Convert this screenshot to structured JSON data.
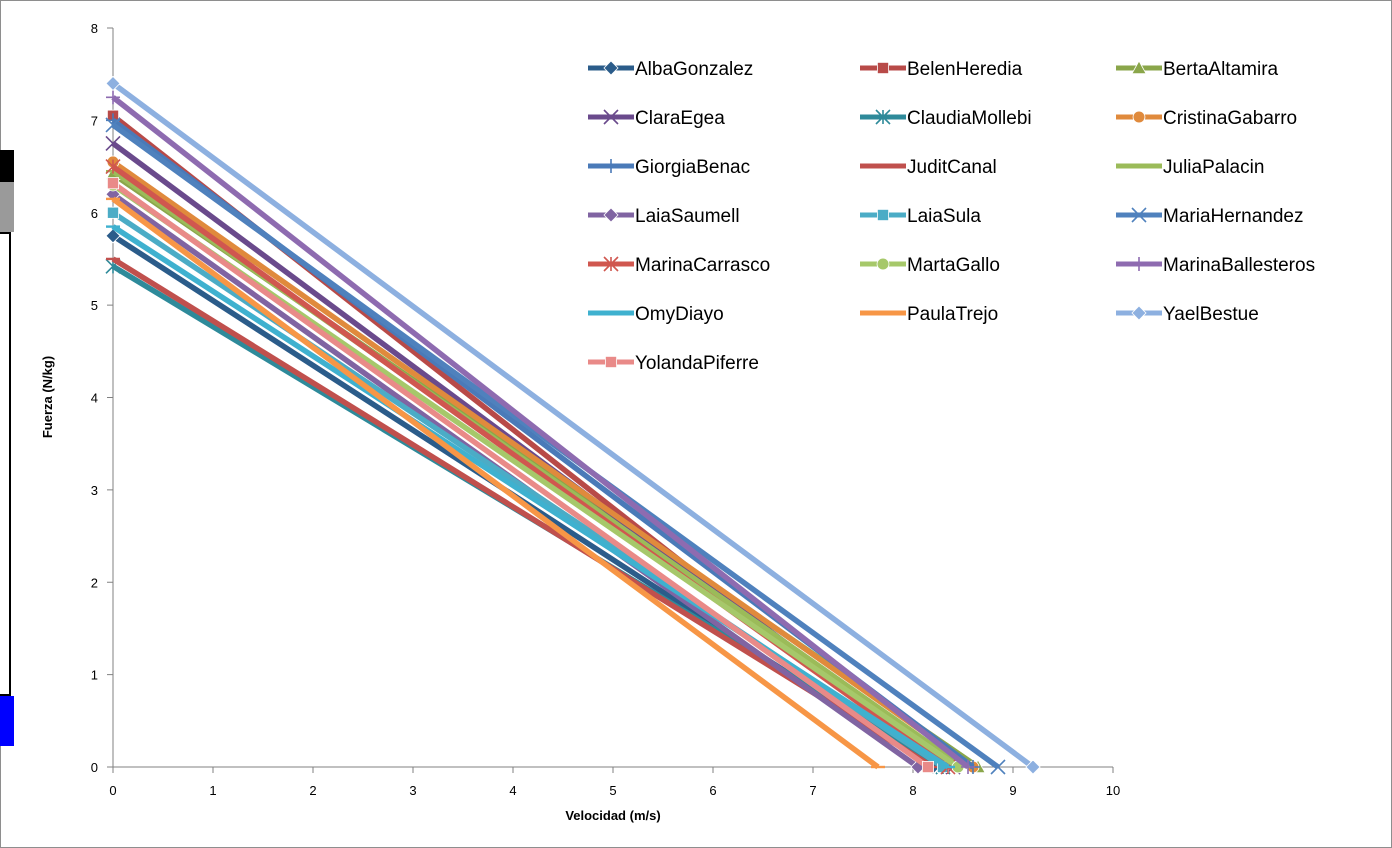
{
  "chart_data": {
    "type": "line",
    "xlabel": "Velocidad (m/s)",
    "ylabel": "Fuerza (N/kg)",
    "xlim": [
      0,
      10
    ],
    "ylim": [
      0,
      8
    ],
    "xticks": [
      "0",
      "1",
      "2",
      "3",
      "4",
      "5",
      "6",
      "7",
      "8",
      "9",
      "10"
    ],
    "yticks": [
      "0",
      "1",
      "2",
      "3",
      "4",
      "5",
      "6",
      "7",
      "8"
    ],
    "grid": false,
    "legend_position": "top-right",
    "series": [
      {
        "name": "AlbaGonzalez",
        "color": "#2b5c8a",
        "marker": "diamond",
        "x": [
          0,
          8.2
        ],
        "y": [
          5.75,
          0
        ]
      },
      {
        "name": "BelenHeredia",
        "color": "#b84a48",
        "marker": "square",
        "x": [
          0,
          8.3
        ],
        "y": [
          7.05,
          0
        ]
      },
      {
        "name": "BertaAltamira",
        "color": "#8aa64a",
        "marker": "triangle",
        "x": [
          0,
          8.65
        ],
        "y": [
          6.42,
          0
        ]
      },
      {
        "name": "ClaraEgea",
        "color": "#6a4a8c",
        "marker": "x",
        "x": [
          0,
          8.4
        ],
        "y": [
          6.75,
          0
        ]
      },
      {
        "name": "ClaudiaMollebi",
        "color": "#2e8a9a",
        "marker": "star",
        "x": [
          0,
          8.3
        ],
        "y": [
          5.42,
          0
        ]
      },
      {
        "name": "CristinaGabarro",
        "color": "#e08a3c",
        "marker": "circle",
        "x": [
          0,
          8.6
        ],
        "y": [
          6.55,
          0
        ]
      },
      {
        "name": "GiorgiaBenac",
        "color": "#4a7ab8",
        "marker": "plus",
        "x": [
          0,
          8.6
        ],
        "y": [
          7.0,
          0
        ]
      },
      {
        "name": "JuditCanal",
        "color": "#c0504d",
        "marker": "dash",
        "x": [
          0,
          8.2
        ],
        "y": [
          5.5,
          0
        ]
      },
      {
        "name": "JuliaPalacin",
        "color": "#9bbb59",
        "marker": "dash",
        "x": [
          0,
          8.5
        ],
        "y": [
          6.45,
          0
        ]
      },
      {
        "name": "LaiaSaumell",
        "color": "#8064a2",
        "marker": "diamond",
        "x": [
          0,
          8.05
        ],
        "y": [
          6.2,
          0
        ]
      },
      {
        "name": "LaiaSula",
        "color": "#4bacc6",
        "marker": "square",
        "x": [
          0,
          8.3
        ],
        "y": [
          6.0,
          0
        ]
      },
      {
        "name": "MariaHernandez",
        "color": "#4f81bd",
        "marker": "x",
        "x": [
          0,
          8.85
        ],
        "y": [
          6.95,
          0
        ]
      },
      {
        "name": "MarinaCarrasco",
        "color": "#d0574f",
        "marker": "star",
        "x": [
          0,
          8.35
        ],
        "y": [
          6.5,
          0
        ]
      },
      {
        "name": "MartaGallo",
        "color": "#a6c86a",
        "marker": "circle",
        "x": [
          0,
          8.45
        ],
        "y": [
          6.3,
          0
        ]
      },
      {
        "name": "MarinaBallesteros",
        "color": "#8e6bb0",
        "marker": "plus",
        "x": [
          0,
          8.55
        ],
        "y": [
          7.25,
          0
        ]
      },
      {
        "name": "OmyDiayo",
        "color": "#3fb1cf",
        "marker": "dash",
        "x": [
          0,
          8.35
        ],
        "y": [
          5.85,
          0
        ]
      },
      {
        "name": "PaulaTrejo",
        "color": "#f79646",
        "marker": "dash",
        "x": [
          0,
          7.65
        ],
        "y": [
          6.15,
          0
        ]
      },
      {
        "name": "YaelBestue",
        "color": "#8db0e0",
        "marker": "diamond",
        "x": [
          0,
          9.2
        ],
        "y": [
          7.4,
          0
        ]
      },
      {
        "name": "YolandaPiferre",
        "color": "#e98a88",
        "marker": "square",
        "x": [
          0,
          8.15
        ],
        "y": [
          6.32,
          0
        ]
      }
    ]
  }
}
